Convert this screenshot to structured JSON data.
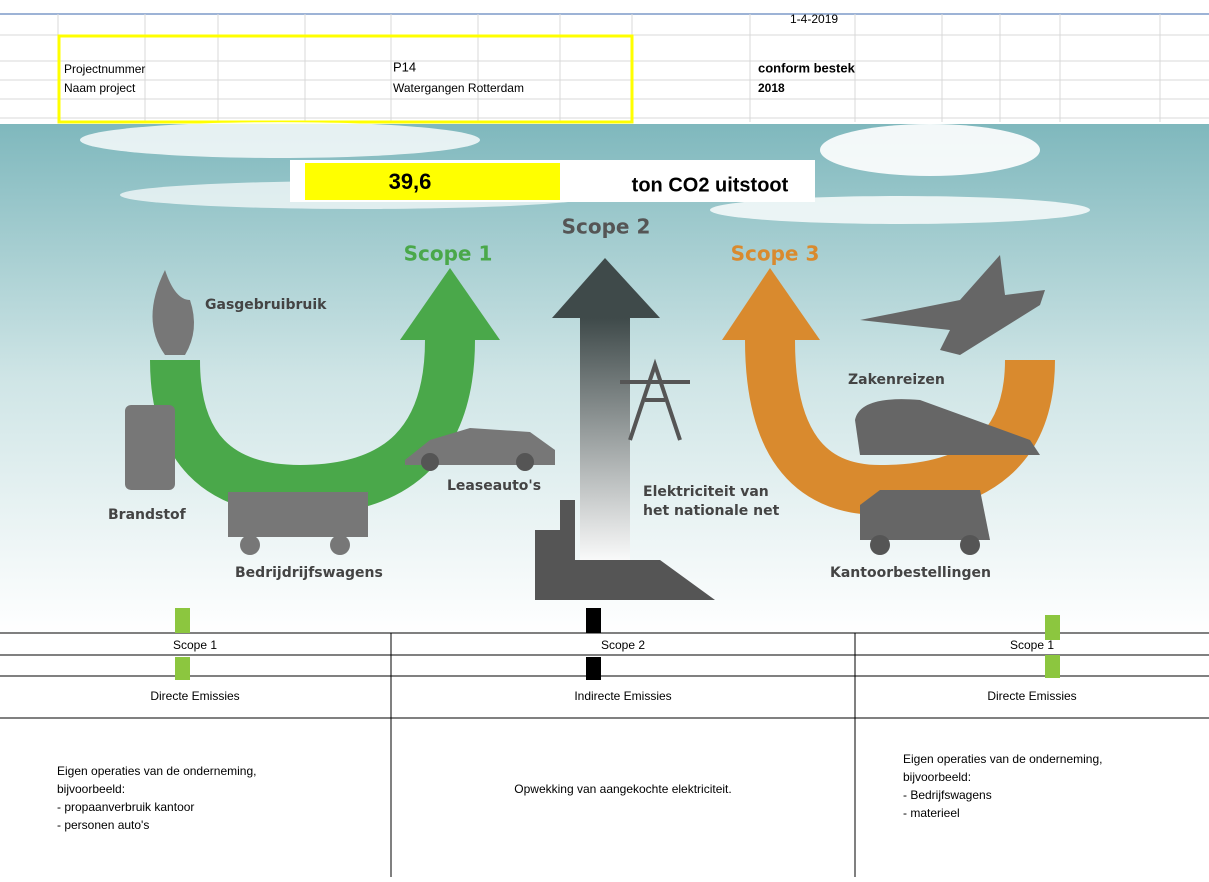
{
  "header": {
    "date": "1-4-2019",
    "rows": [
      [
        "Projectnummer",
        "P14",
        "conform bestek"
      ],
      [
        "Naam project",
        "Watergangen Rotterdam",
        "2018"
      ]
    ]
  },
  "banner": {
    "value": "39,6",
    "unit": "ton CO2 uitstoot"
  },
  "infographic": {
    "scopes": [
      "Scope 1",
      "Scope 2",
      "Scope 3"
    ],
    "labels": {
      "gas": "Gasgebruibruik",
      "fuel": "Brandstof",
      "trucks": "Bedrijdrijfswagens",
      "lease": "Leaseauto's",
      "electricity": [
        "Elektriciteit van",
        "het nationale net"
      ],
      "travel": "Zakenreizen",
      "office": "Kantoorbestellingen"
    }
  },
  "table": {
    "scopes": [
      "Scope 1",
      "Scope 2",
      "Scope 1"
    ],
    "types": [
      "Directe Emissies",
      "Indirecte Emissies",
      "Directe Emissies"
    ],
    "descriptions": [
      [
        "Eigen operaties van de onderneming,",
        "bijvoorbeeld:",
        "- propaanverbruik kantoor",
        "- personen auto's"
      ],
      [
        "Opwekking van aangekochte elektriciteit."
      ],
      [
        "Eigen operaties van de onderneming,",
        "bijvoorbeeld:",
        "- Bedrijfswagens",
        "- materieel"
      ]
    ]
  }
}
